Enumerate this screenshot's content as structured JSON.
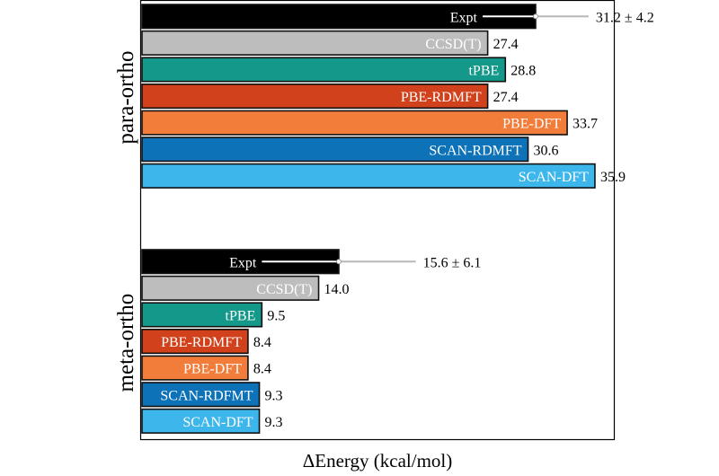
{
  "chart_data": {
    "type": "bar",
    "orientation": "horizontal",
    "xlabel": "ΔEnergy (kcal/mol)",
    "grid": false,
    "xlim": [
      0,
      37.4
    ],
    "groups": [
      {
        "name": "para-ortho",
        "bars": [
          {
            "label": "Expt",
            "value": 31.2,
            "value_label": "31.2 ± 4.2",
            "error": 4.2,
            "color": "#000000",
            "label_color": "#ffffff"
          },
          {
            "label": "CCSD(T)",
            "value": 27.4,
            "value_label": "27.4",
            "color": "#bdbdbd",
            "label_color": "#ffffff"
          },
          {
            "label": "tPBE",
            "value": 28.8,
            "value_label": "28.8",
            "color": "#13988a",
            "label_color": "#ffffff"
          },
          {
            "label": "PBE-RDMFT",
            "value": 27.4,
            "value_label": "27.4",
            "color": "#d1411b",
            "label_color": "#ffffff"
          },
          {
            "label": "PBE-DFT",
            "value": 33.7,
            "value_label": "33.7",
            "color": "#f27d3b",
            "label_color": "#ffffff"
          },
          {
            "label": "SCAN-RDMFT",
            "value": 30.6,
            "value_label": "30.6",
            "color": "#0e72b8",
            "label_color": "#ffffff"
          },
          {
            "label": "SCAN-DFT",
            "value": 35.9,
            "value_label": "35.9",
            "color": "#3db6ec",
            "label_color": "#ffffff"
          }
        ]
      },
      {
        "name": "meta-ortho",
        "bars": [
          {
            "label": "Expt",
            "value": 15.6,
            "value_label": "15.6 ± 6.1",
            "error": 6.1,
            "color": "#000000",
            "label_color": "#ffffff"
          },
          {
            "label": "CCSD(T)",
            "value": 14.0,
            "value_label": "14.0",
            "color": "#bdbdbd",
            "label_color": "#ffffff"
          },
          {
            "label": "tPBE",
            "value": 9.5,
            "value_label": "9.5",
            "color": "#13988a",
            "label_color": "#ffffff"
          },
          {
            "label": "PBE-RDMFT",
            "value": 8.4,
            "value_label": "8.4",
            "color": "#d1411b",
            "label_color": "#ffffff"
          },
          {
            "label": "PBE-DFT",
            "value": 8.4,
            "value_label": "8.4",
            "color": "#f27d3b",
            "label_color": "#ffffff"
          },
          {
            "label": "SCAN-RDFMT",
            "value": 9.3,
            "value_label": "9.3",
            "color": "#0e72b8",
            "label_color": "#ffffff"
          },
          {
            "label": "SCAN-DFT",
            "value": 9.3,
            "value_label": "9.3",
            "color": "#3db6ec",
            "label_color": "#ffffff"
          }
        ]
      }
    ]
  }
}
